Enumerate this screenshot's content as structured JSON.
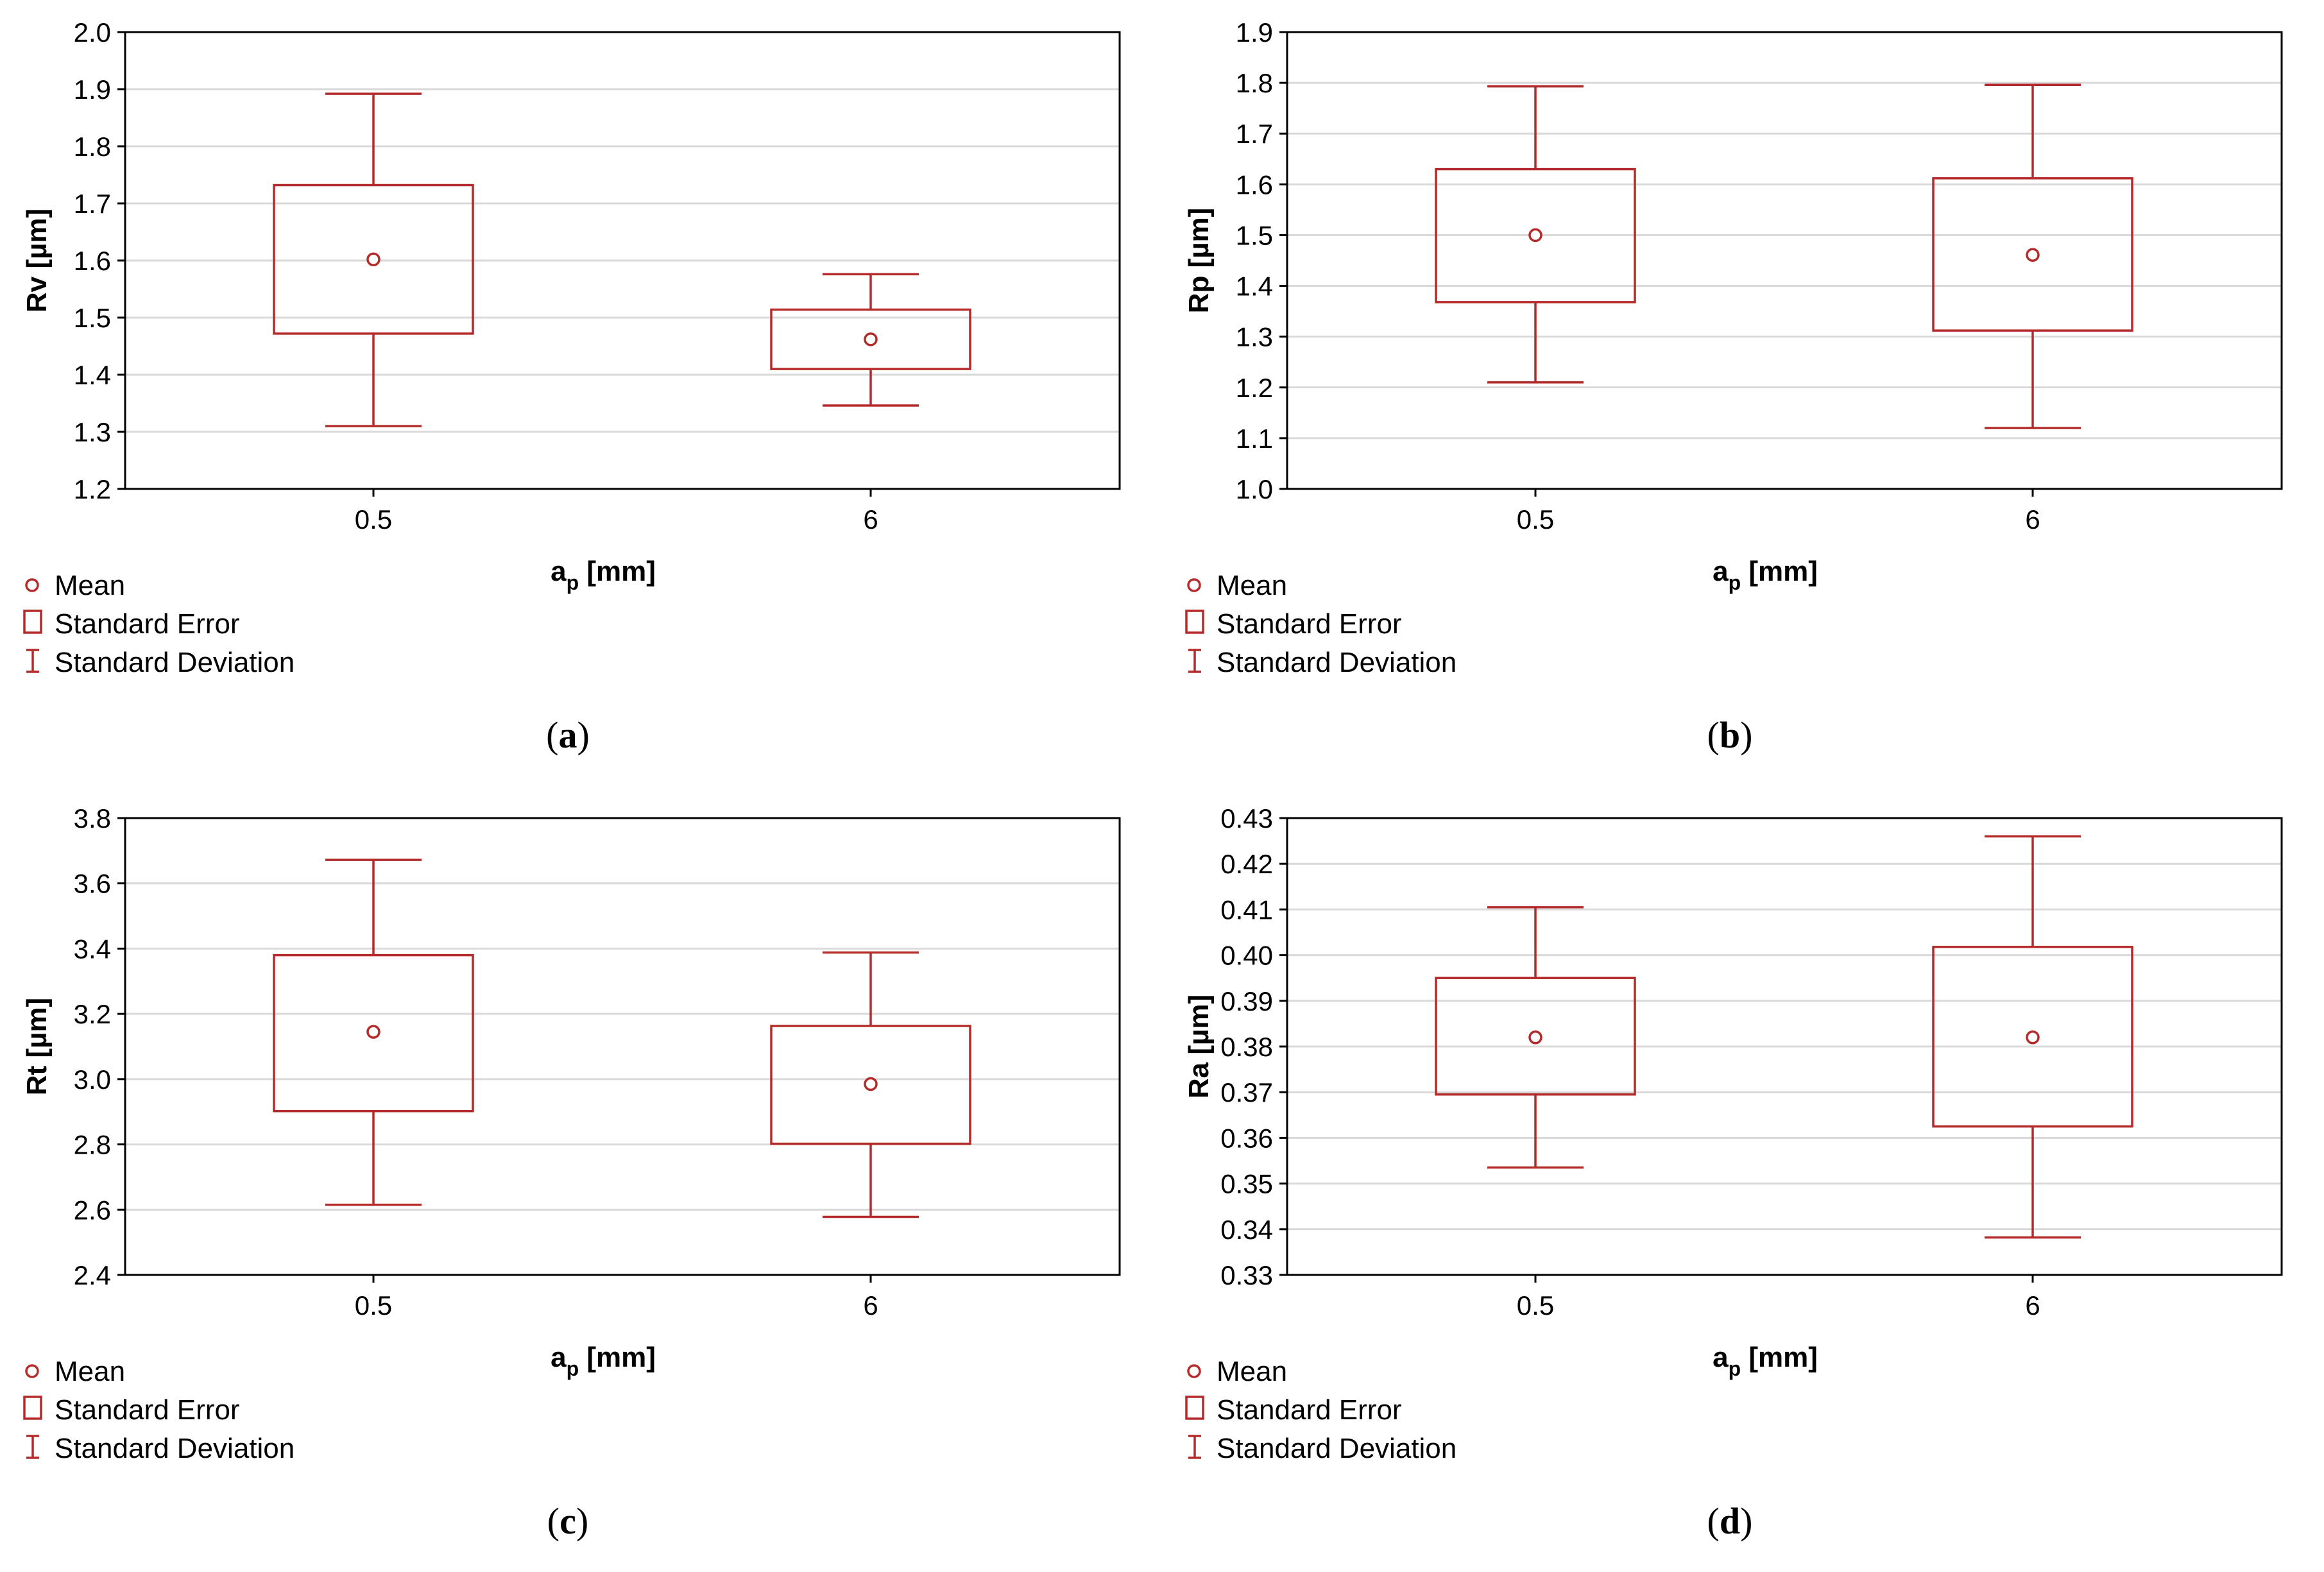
{
  "legend": {
    "mean": "Mean",
    "standard_error": "Standard Error",
    "standard_deviation": "Standard Deviation"
  },
  "colors": {
    "series": "#b52b2b",
    "grid": "#d9d9d9",
    "axis": "#000000"
  },
  "chart_data": [
    {
      "id": "a",
      "type": "box",
      "caption_letter": "a",
      "ylabel": "Rv [µm]",
      "xlabel": {
        "main": "a",
        "sub": "p",
        "unit": " [mm]"
      },
      "ylim": [
        1.2,
        2.0
      ],
      "yticks": [
        "1.2",
        "1.3",
        "1.4",
        "1.5",
        "1.6",
        "1.7",
        "1.8",
        "1.9",
        "2.0"
      ],
      "categories": [
        "0.5",
        "6"
      ],
      "mean": [
        1.602,
        1.462
      ],
      "se_low": [
        1.472,
        1.41
      ],
      "se_high": [
        1.732,
        1.514
      ],
      "sd_low": [
        1.31,
        1.346
      ],
      "sd_high": [
        1.892,
        1.576
      ]
    },
    {
      "id": "b",
      "type": "box",
      "caption_letter": "b",
      "ylabel": "Rp [µm]",
      "xlabel": {
        "main": "a",
        "sub": "p",
        "unit": " [mm]"
      },
      "ylim": [
        1.0,
        1.9
      ],
      "yticks": [
        "1.0",
        "1.1",
        "1.2",
        "1.3",
        "1.4",
        "1.5",
        "1.6",
        "1.7",
        "1.8",
        "1.9"
      ],
      "categories": [
        "0.5",
        "6"
      ],
      "mean": [
        1.5,
        1.461
      ],
      "se_low": [
        1.368,
        1.312
      ],
      "se_high": [
        1.63,
        1.612
      ],
      "sd_low": [
        1.21,
        1.12
      ],
      "sd_high": [
        1.793,
        1.796
      ]
    },
    {
      "id": "c",
      "type": "box",
      "caption_letter": "c",
      "ylabel": "Rt [µm]",
      "xlabel": {
        "main": "a",
        "sub": "p",
        "unit": " [mm]"
      },
      "ylim": [
        2.4,
        3.8
      ],
      "yticks": [
        "2.4",
        "2.6",
        "2.8",
        "3.0",
        "3.2",
        "3.4",
        "3.6",
        "3.8"
      ],
      "categories": [
        "0.5",
        "6"
      ],
      "mean": [
        3.145,
        2.985
      ],
      "se_low": [
        2.902,
        2.802
      ],
      "se_high": [
        3.38,
        3.163
      ],
      "sd_low": [
        2.615,
        2.578
      ],
      "sd_high": [
        3.672,
        3.388
      ]
    },
    {
      "id": "d",
      "type": "box",
      "caption_letter": "d",
      "ylabel": "Ra [µm]",
      "xlabel": {
        "main": "a",
        "sub": "p",
        "unit": " [mm]"
      },
      "ylim": [
        0.33,
        0.43
      ],
      "yticks": [
        "0.33",
        "0.34",
        "0.35",
        "0.36",
        "0.37",
        "0.38",
        "0.39",
        "0.40",
        "0.41",
        "0.42",
        "0.43"
      ],
      "categories": [
        "0.5",
        "6"
      ],
      "mean": [
        0.382,
        0.382
      ],
      "se_low": [
        0.3695,
        0.3625
      ],
      "se_high": [
        0.395,
        0.4018
      ],
      "sd_low": [
        0.3535,
        0.3382
      ],
      "sd_high": [
        0.4105,
        0.426
      ]
    }
  ]
}
